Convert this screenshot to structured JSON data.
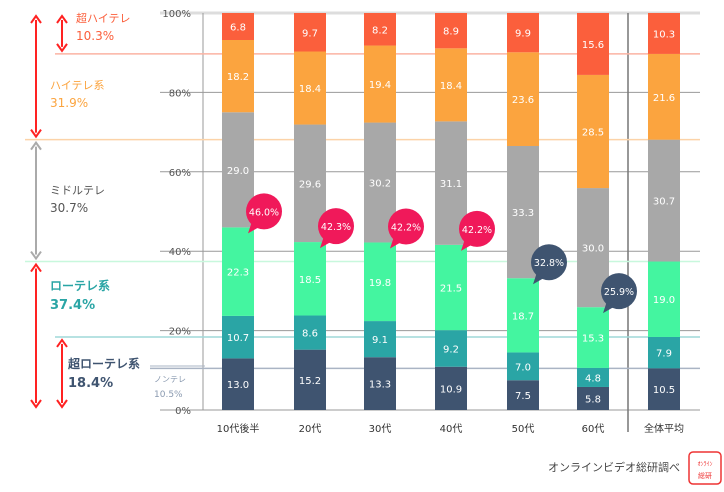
{
  "chart_data": {
    "type": "bar",
    "stacked": true,
    "categories": [
      "10代後半",
      "20代",
      "30代",
      "40代",
      "50代",
      "60代",
      "全体平均"
    ],
    "series": [
      {
        "name": "ノンテレ",
        "color": "#3f5470",
        "values": [
          13.0,
          15.2,
          13.3,
          10.9,
          7.5,
          5.8,
          10.5
        ]
      },
      {
        "name": "",
        "color": "#2aa5a5",
        "values": [
          10.7,
          8.6,
          9.1,
          9.2,
          7.0,
          4.8,
          7.9
        ]
      },
      {
        "name": "",
        "color": "#44f5a0",
        "values": [
          22.3,
          18.5,
          19.8,
          21.5,
          18.7,
          15.3,
          19.0
        ]
      },
      {
        "name": "",
        "color": "#a8a8a8",
        "values": [
          29.0,
          29.6,
          30.2,
          31.1,
          33.3,
          30.0,
          30.7
        ]
      },
      {
        "name": "",
        "color": "#fba43f",
        "values": [
          18.2,
          18.4,
          19.4,
          18.4,
          23.6,
          28.5,
          21.6
        ]
      },
      {
        "name": "",
        "color": "#fb5f3c",
        "values": [
          6.8,
          9.7,
          8.2,
          8.9,
          9.9,
          15.6,
          10.3
        ]
      }
    ],
    "callouts": [
      {
        "category": "10代後半",
        "label": "46.0%",
        "color": "#f0195a"
      },
      {
        "category": "20代",
        "label": "42.3%",
        "color": "#f0195a"
      },
      {
        "category": "30代",
        "label": "42.2%",
        "color": "#f0195a"
      },
      {
        "category": "40代",
        "label": "42.2%",
        "color": "#f0195a"
      },
      {
        "category": "50代",
        "label": "32.8%",
        "color": "#3f5470"
      },
      {
        "category": "60代",
        "label": "25.9%",
        "color": "#3f5470"
      }
    ],
    "yticks": [
      "0%",
      "20%",
      "40%",
      "60%",
      "80%",
      "100%"
    ],
    "ylim": [
      0,
      100
    ],
    "grid": true,
    "groups": [
      {
        "name": "超ハイテレ",
        "value": "10.3%",
        "color": "#fb5f3c",
        "from": 89.7,
        "to": 100
      },
      {
        "name": "ハイテレ系",
        "value": "31.9%",
        "color": "#fba43f",
        "from": 68.1,
        "to": 100
      },
      {
        "name": "ミドルテレ",
        "value": "30.7%",
        "color": "#555555",
        "from": 37.4,
        "to": 68.1
      },
      {
        "name": "ローテレ系",
        "value": "37.4%",
        "color": "#2aa5a5",
        "from": 0,
        "to": 37.4
      },
      {
        "name": "超ローテレ系",
        "value": "18.4%",
        "color": "#3f5470",
        "from": 0,
        "to": 18.4
      },
      {
        "name": "ノンテレ",
        "value": "10.5%",
        "color": "#8a9ab0",
        "from": 0,
        "to": 10.5
      }
    ],
    "source": "オンラインビデオ総研調べ",
    "stamp": "オンラインビデオ総研"
  }
}
